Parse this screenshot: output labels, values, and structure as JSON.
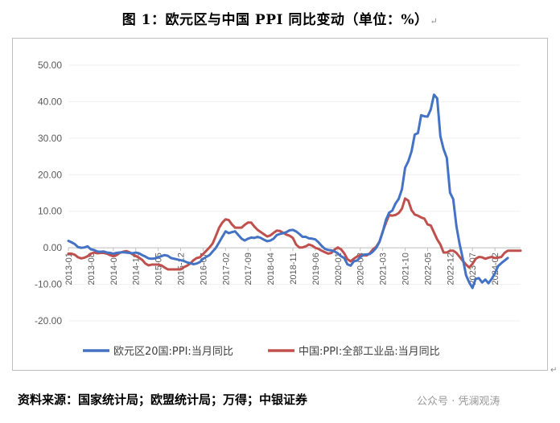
{
  "title": "图 1：欧元区与中国 PPI 同比变动（单位：%）",
  "source": "资料来源：国家统计局；欧盟统计局；万得；中银证券",
  "watermark": "公众号 · 凭澜观涛",
  "chart_data": {
    "type": "line",
    "ylim": [
      -20,
      50
    ],
    "yticks": [
      "-20.00",
      "-10.00",
      "0.00",
      "10.00",
      "20.00",
      "30.00",
      "40.00",
      "50.00"
    ],
    "xticks": [
      "2013-01",
      "2013-08",
      "2014-03",
      "2014-10",
      "2015-05",
      "2015-12",
      "2016-07",
      "2017-02",
      "2017-09",
      "2018-04",
      "2018-11",
      "2019-06",
      "2020-01",
      "2020-08",
      "2021-03",
      "2021-10",
      "2022-05",
      "2022-12",
      "2023-07",
      "2024-02"
    ],
    "x_start": "2013-01",
    "legend_position": "bottom",
    "series": [
      {
        "name": "欧元区20国:PPI:当月同比",
        "color": "#4472C4",
        "values": [
          1.9,
          1.5,
          1.0,
          0.2,
          0.0,
          0.1,
          0.4,
          -0.4,
          -0.6,
          -1.0,
          -1.1,
          -1.0,
          -1.3,
          -1.4,
          -1.6,
          -1.4,
          -1.3,
          -1.2,
          -1.3,
          -1.4,
          -1.5,
          -1.3,
          -1.5,
          -2.0,
          -2.4,
          -2.9,
          -3.0,
          -2.9,
          -2.6,
          -2.3,
          -2.0,
          -2.2,
          -2.8,
          -3.0,
          -3.2,
          -3.4,
          -3.6,
          -4.0,
          -4.2,
          -4.5,
          -4.3,
          -3.9,
          -3.0,
          -2.5,
          -2.0,
          -1.0,
          0.0,
          1.5,
          3.0,
          4.5,
          4.0,
          4.3,
          4.5,
          3.5,
          2.5,
          2.0,
          2.5,
          2.8,
          2.7,
          3.0,
          2.7,
          2.2,
          1.8,
          2.0,
          2.5,
          3.5,
          3.8,
          4.0,
          4.3,
          4.8,
          4.9,
          4.5,
          3.8,
          3.0,
          3.0,
          2.6,
          2.5,
          2.3,
          1.5,
          0.5,
          -0.3,
          -0.6,
          -0.7,
          -1.0,
          -1.5,
          -2.3,
          -2.8,
          -4.5,
          -4.9,
          -3.7,
          -3.5,
          -2.6,
          -1.9,
          -1.8,
          -1.7,
          -1.0,
          0.0,
          1.6,
          4.3,
          7.6,
          9.6,
          10.2,
          12.1,
          13.4,
          16.0,
          21.9,
          23.7,
          26.4,
          31.0,
          31.4,
          36.3,
          36.0,
          35.9,
          37.9,
          41.9,
          40.9,
          30.5,
          27.0,
          24.6,
          15.1,
          13.3,
          5.9,
          1.0,
          -3.0,
          -7.5,
          -9.5,
          -11.0,
          -8.5,
          -8.3,
          -9.5,
          -8.7,
          -9.7,
          -8.5,
          -7.0,
          -5.0,
          -4.2,
          -3.5,
          -2.8
        ]
      },
      {
        "name": "中国:PPI:全部工业品:当月同比",
        "color": "#C0504D",
        "values": [
          -1.6,
          -1.6,
          -1.9,
          -2.6,
          -2.9,
          -2.7,
          -2.3,
          -1.6,
          -1.3,
          -1.5,
          -1.4,
          -1.4,
          -1.6,
          -2.0,
          -2.3,
          -2.0,
          -1.4,
          -1.1,
          -0.9,
          -1.2,
          -1.8,
          -2.2,
          -2.7,
          -3.3,
          -4.3,
          -4.8,
          -4.6,
          -4.6,
          -4.6,
          -4.8,
          -5.4,
          -5.9,
          -5.9,
          -5.9,
          -5.9,
          -5.9,
          -5.3,
          -4.9,
          -4.3,
          -3.4,
          -2.8,
          -2.6,
          -1.7,
          -0.8,
          0.1,
          1.2,
          3.3,
          5.5,
          6.9,
          7.8,
          7.6,
          6.4,
          5.5,
          5.5,
          5.5,
          6.3,
          6.9,
          6.9,
          5.8,
          4.9,
          4.3,
          3.7,
          3.1,
          3.4,
          4.1,
          4.7,
          4.6,
          4.1,
          3.6,
          3.3,
          2.7,
          0.9,
          0.1,
          0.1,
          0.4,
          0.9,
          0.6,
          0.0,
          -0.3,
          -0.8,
          -1.2,
          -1.6,
          -1.4,
          -0.5,
          0.1,
          -0.4,
          -1.5,
          -3.1,
          -3.7,
          -3.0,
          -2.4,
          -2.0,
          -2.1,
          -2.1,
          -1.5,
          -0.4,
          0.3,
          1.7,
          4.4,
          6.8,
          9.0,
          8.8,
          9.0,
          9.5,
          10.7,
          13.5,
          12.9,
          10.3,
          9.1,
          8.8,
          8.3,
          8.0,
          6.4,
          6.1,
          4.2,
          2.3,
          0.9,
          -1.3,
          -1.3,
          -0.8,
          -0.8,
          -1.4,
          -2.5,
          -3.6,
          -4.6,
          -5.4,
          -4.4,
          -3.0,
          -2.5,
          -2.6,
          -3.0,
          -2.7,
          -2.5,
          -2.8,
          -2.7,
          -2.5,
          -1.4,
          -0.8,
          -0.8,
          -0.8,
          -0.8,
          -0.8
        ]
      }
    ]
  }
}
